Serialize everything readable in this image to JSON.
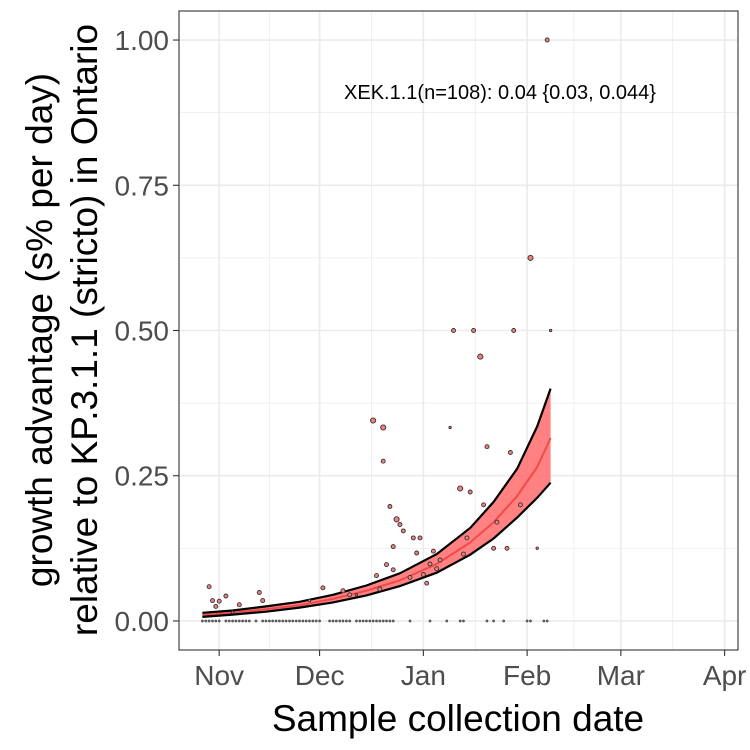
{
  "chart_data": {
    "type": "scatter",
    "xlabel": "Sample collection date",
    "ylabel_lines": [
      "growth advantage (s% per day)",
      "relative to KP.3.1.1 (stricto) in Ontario"
    ],
    "annotation": "XEK.1.1(n=108): 0.04 {0.03, 0.044}",
    "x_range": [
      "2024-10-20",
      "2025-04-05"
    ],
    "ylim": [
      -0.05,
      1.05
    ],
    "x_ticks": [
      {
        "date": "2024-11-01",
        "label": "Nov"
      },
      {
        "date": "2024-12-01",
        "label": "Dec"
      },
      {
        "date": "2025-01-01",
        "label": "Jan"
      },
      {
        "date": "2025-02-01",
        "label": "Feb"
      },
      {
        "date": "2025-03-01",
        "label": "Mar"
      },
      {
        "date": "2025-04-01",
        "label": "Apr"
      }
    ],
    "y_ticks": [
      {
        "value": 0.0,
        "label": "0.00"
      },
      {
        "value": 0.25,
        "label": "0.25"
      },
      {
        "value": 0.5,
        "label": "0.50"
      },
      {
        "value": 0.75,
        "label": "0.75"
      },
      {
        "value": 1.0,
        "label": "1.00"
      }
    ],
    "grid": true,
    "colors": {
      "fit_line": "#f04a4a",
      "ribbon": "#ff6b6b",
      "bound": "#000000",
      "point_fill": "#f08080",
      "point_stroke": "#333333",
      "panel_border": "#333333",
      "grid": "#ebebeb"
    },
    "fit": {
      "dates": [
        "2024-10-27",
        "2024-11-05",
        "2024-11-15",
        "2024-11-25",
        "2024-12-05",
        "2024-12-15",
        "2024-12-25",
        "2025-01-05",
        "2025-01-15",
        "2025-01-22",
        "2025-01-29",
        "2025-02-04",
        "2025-02-08"
      ],
      "mid": [
        0.01,
        0.014,
        0.02,
        0.027,
        0.038,
        0.052,
        0.07,
        0.098,
        0.135,
        0.17,
        0.215,
        0.265,
        0.315
      ],
      "lower": [
        0.007,
        0.011,
        0.016,
        0.023,
        0.032,
        0.044,
        0.06,
        0.083,
        0.114,
        0.142,
        0.178,
        0.212,
        0.238
      ],
      "upper": [
        0.014,
        0.018,
        0.025,
        0.033,
        0.045,
        0.061,
        0.082,
        0.115,
        0.16,
        0.205,
        0.262,
        0.335,
        0.4
      ]
    },
    "points": [
      {
        "date": "2024-10-27",
        "y": 0.0,
        "size": 1
      },
      {
        "date": "2024-10-28",
        "y": 0.0,
        "size": 1
      },
      {
        "date": "2024-10-29",
        "y": 0.0,
        "size": 1
      },
      {
        "date": "2024-10-30",
        "y": 0.0,
        "size": 1
      },
      {
        "date": "2024-10-31",
        "y": 0.0,
        "size": 1
      },
      {
        "date": "2024-11-01",
        "y": 0.0,
        "size": 1
      },
      {
        "date": "2024-11-03",
        "y": 0.0,
        "size": 1
      },
      {
        "date": "2024-11-04",
        "y": 0.0,
        "size": 1
      },
      {
        "date": "2024-11-05",
        "y": 0.0,
        "size": 1
      },
      {
        "date": "2024-11-06",
        "y": 0.0,
        "size": 1
      },
      {
        "date": "2024-11-07",
        "y": 0.0,
        "size": 1
      },
      {
        "date": "2024-11-08",
        "y": 0.0,
        "size": 1
      },
      {
        "date": "2024-11-09",
        "y": 0.0,
        "size": 1
      },
      {
        "date": "2024-11-10",
        "y": 0.0,
        "size": 1
      },
      {
        "date": "2024-11-12",
        "y": 0.0,
        "size": 1
      },
      {
        "date": "2024-11-14",
        "y": 0.0,
        "size": 1
      },
      {
        "date": "2024-11-15",
        "y": 0.0,
        "size": 1
      },
      {
        "date": "2024-11-16",
        "y": 0.0,
        "size": 1
      },
      {
        "date": "2024-11-17",
        "y": 0.0,
        "size": 1
      },
      {
        "date": "2024-11-18",
        "y": 0.0,
        "size": 1
      },
      {
        "date": "2024-11-19",
        "y": 0.0,
        "size": 1
      },
      {
        "date": "2024-11-20",
        "y": 0.0,
        "size": 1
      },
      {
        "date": "2024-11-21",
        "y": 0.0,
        "size": 1
      },
      {
        "date": "2024-11-22",
        "y": 0.0,
        "size": 1
      },
      {
        "date": "2024-11-23",
        "y": 0.0,
        "size": 1
      },
      {
        "date": "2024-11-24",
        "y": 0.0,
        "size": 1
      },
      {
        "date": "2024-11-25",
        "y": 0.0,
        "size": 1
      },
      {
        "date": "2024-11-26",
        "y": 0.0,
        "size": 1
      },
      {
        "date": "2024-11-27",
        "y": 0.0,
        "size": 1
      },
      {
        "date": "2024-11-28",
        "y": 0.0,
        "size": 1
      },
      {
        "date": "2024-11-29",
        "y": 0.0,
        "size": 1
      },
      {
        "date": "2024-11-30",
        "y": 0.0,
        "size": 1
      },
      {
        "date": "2024-12-01",
        "y": 0.0,
        "size": 1
      },
      {
        "date": "2024-12-04",
        "y": 0.0,
        "size": 1
      },
      {
        "date": "2024-12-05",
        "y": 0.0,
        "size": 1
      },
      {
        "date": "2024-12-06",
        "y": 0.0,
        "size": 1
      },
      {
        "date": "2024-12-07",
        "y": 0.0,
        "size": 1
      },
      {
        "date": "2024-12-08",
        "y": 0.0,
        "size": 1
      },
      {
        "date": "2024-12-09",
        "y": 0.0,
        "size": 1
      },
      {
        "date": "2024-12-10",
        "y": 0.0,
        "size": 1
      },
      {
        "date": "2024-12-12",
        "y": 0.0,
        "size": 1
      },
      {
        "date": "2024-12-13",
        "y": 0.0,
        "size": 1
      },
      {
        "date": "2024-12-14",
        "y": 0.0,
        "size": 1
      },
      {
        "date": "2024-12-15",
        "y": 0.0,
        "size": 1
      },
      {
        "date": "2024-12-16",
        "y": 0.0,
        "size": 1
      },
      {
        "date": "2024-12-17",
        "y": 0.0,
        "size": 1
      },
      {
        "date": "2024-12-18",
        "y": 0.0,
        "size": 1
      },
      {
        "date": "2024-12-19",
        "y": 0.0,
        "size": 1
      },
      {
        "date": "2024-12-20",
        "y": 0.0,
        "size": 1
      },
      {
        "date": "2024-12-21",
        "y": 0.0,
        "size": 1
      },
      {
        "date": "2024-12-22",
        "y": 0.0,
        "size": 1
      },
      {
        "date": "2024-12-23",
        "y": 0.0,
        "size": 1
      },
      {
        "date": "2024-12-28",
        "y": 0.0,
        "size": 1
      },
      {
        "date": "2025-01-03",
        "y": 0.0,
        "size": 1
      },
      {
        "date": "2025-01-08",
        "y": 0.0,
        "size": 1
      },
      {
        "date": "2025-01-12",
        "y": 0.0,
        "size": 1
      },
      {
        "date": "2025-01-13",
        "y": 0.0,
        "size": 1
      },
      {
        "date": "2025-01-20",
        "y": 0.0,
        "size": 1
      },
      {
        "date": "2025-01-22",
        "y": 0.0,
        "size": 1
      },
      {
        "date": "2025-01-25",
        "y": 0.0,
        "size": 1
      },
      {
        "date": "2025-02-01",
        "y": 0.0,
        "size": 1
      },
      {
        "date": "2025-02-02",
        "y": 0.0,
        "size": 1
      },
      {
        "date": "2025-02-06",
        "y": 0.0,
        "size": 1
      },
      {
        "date": "2025-02-07",
        "y": 0.0,
        "size": 1
      },
      {
        "date": "2024-10-29",
        "y": 0.059,
        "size": 2
      },
      {
        "date": "2024-10-30",
        "y": 0.035,
        "size": 2
      },
      {
        "date": "2024-10-31",
        "y": 0.025,
        "size": 2
      },
      {
        "date": "2024-11-01",
        "y": 0.034,
        "size": 2
      },
      {
        "date": "2024-11-03",
        "y": 0.043,
        "size": 2
      },
      {
        "date": "2024-11-05",
        "y": 0.015,
        "size": 1
      },
      {
        "date": "2024-11-07",
        "y": 0.028,
        "size": 2
      },
      {
        "date": "2024-11-13",
        "y": 0.049,
        "size": 2
      },
      {
        "date": "2024-11-14",
        "y": 0.035,
        "size": 2
      },
      {
        "date": "2024-11-28",
        "y": 0.035,
        "size": 1
      },
      {
        "date": "2024-12-02",
        "y": 0.057,
        "size": 2
      },
      {
        "date": "2024-12-08",
        "y": 0.052,
        "size": 2
      },
      {
        "date": "2024-12-10",
        "y": 0.045,
        "size": 2
      },
      {
        "date": "2024-12-12",
        "y": 0.045,
        "size": 1
      },
      {
        "date": "2024-12-17",
        "y": 0.345,
        "size": 3
      },
      {
        "date": "2024-12-18",
        "y": 0.078,
        "size": 2
      },
      {
        "date": "2024-12-19",
        "y": 0.055,
        "size": 2
      },
      {
        "date": "2024-12-20",
        "y": 0.333,
        "size": 3
      },
      {
        "date": "2024-12-20",
        "y": 0.275,
        "size": 2
      },
      {
        "date": "2024-12-21",
        "y": 0.097,
        "size": 2
      },
      {
        "date": "2024-12-22",
        "y": 0.197,
        "size": 2
      },
      {
        "date": "2024-12-23",
        "y": 0.088,
        "size": 2
      },
      {
        "date": "2024-12-23",
        "y": 0.128,
        "size": 2
      },
      {
        "date": "2024-12-24",
        "y": 0.175,
        "size": 3
      },
      {
        "date": "2024-12-25",
        "y": 0.166,
        "size": 2
      },
      {
        "date": "2024-12-26",
        "y": 0.155,
        "size": 2
      },
      {
        "date": "2024-12-28",
        "y": 0.075,
        "size": 2
      },
      {
        "date": "2024-12-29",
        "y": 0.143,
        "size": 2
      },
      {
        "date": "2024-12-30",
        "y": 0.117,
        "size": 2
      },
      {
        "date": "2024-12-31",
        "y": 0.143,
        "size": 2
      },
      {
        "date": "2025-01-01",
        "y": 0.08,
        "size": 2
      },
      {
        "date": "2025-01-02",
        "y": 0.065,
        "size": 2
      },
      {
        "date": "2025-01-03",
        "y": 0.098,
        "size": 2
      },
      {
        "date": "2025-01-04",
        "y": 0.12,
        "size": 2
      },
      {
        "date": "2025-01-05",
        "y": 0.09,
        "size": 2
      },
      {
        "date": "2025-01-06",
        "y": 0.105,
        "size": 2
      },
      {
        "date": "2025-01-09",
        "y": 0.333,
        "size": 1
      },
      {
        "date": "2025-01-10",
        "y": 0.5,
        "size": 2
      },
      {
        "date": "2025-01-12",
        "y": 0.228,
        "size": 3
      },
      {
        "date": "2025-01-13",
        "y": 0.115,
        "size": 2
      },
      {
        "date": "2025-01-14",
        "y": 0.143,
        "size": 2
      },
      {
        "date": "2025-01-15",
        "y": 0.222,
        "size": 2
      },
      {
        "date": "2025-01-16",
        "y": 0.5,
        "size": 2
      },
      {
        "date": "2025-01-18",
        "y": 0.455,
        "size": 3
      },
      {
        "date": "2025-01-19",
        "y": 0.2,
        "size": 2
      },
      {
        "date": "2025-01-20",
        "y": 0.3,
        "size": 2
      },
      {
        "date": "2025-01-22",
        "y": 0.125,
        "size": 2
      },
      {
        "date": "2025-01-23",
        "y": 0.17,
        "size": 2
      },
      {
        "date": "2025-01-26",
        "y": 0.125,
        "size": 2
      },
      {
        "date": "2025-01-27",
        "y": 0.29,
        "size": 2
      },
      {
        "date": "2025-01-28",
        "y": 0.5,
        "size": 2
      },
      {
        "date": "2025-01-30",
        "y": 0.2,
        "size": 2
      },
      {
        "date": "2025-02-02",
        "y": 0.625,
        "size": 3
      },
      {
        "date": "2025-02-04",
        "y": 0.125,
        "size": 1
      },
      {
        "date": "2025-02-07",
        "y": 1.0,
        "size": 2
      },
      {
        "date": "2025-02-08",
        "y": 0.5,
        "size": 1
      }
    ]
  }
}
